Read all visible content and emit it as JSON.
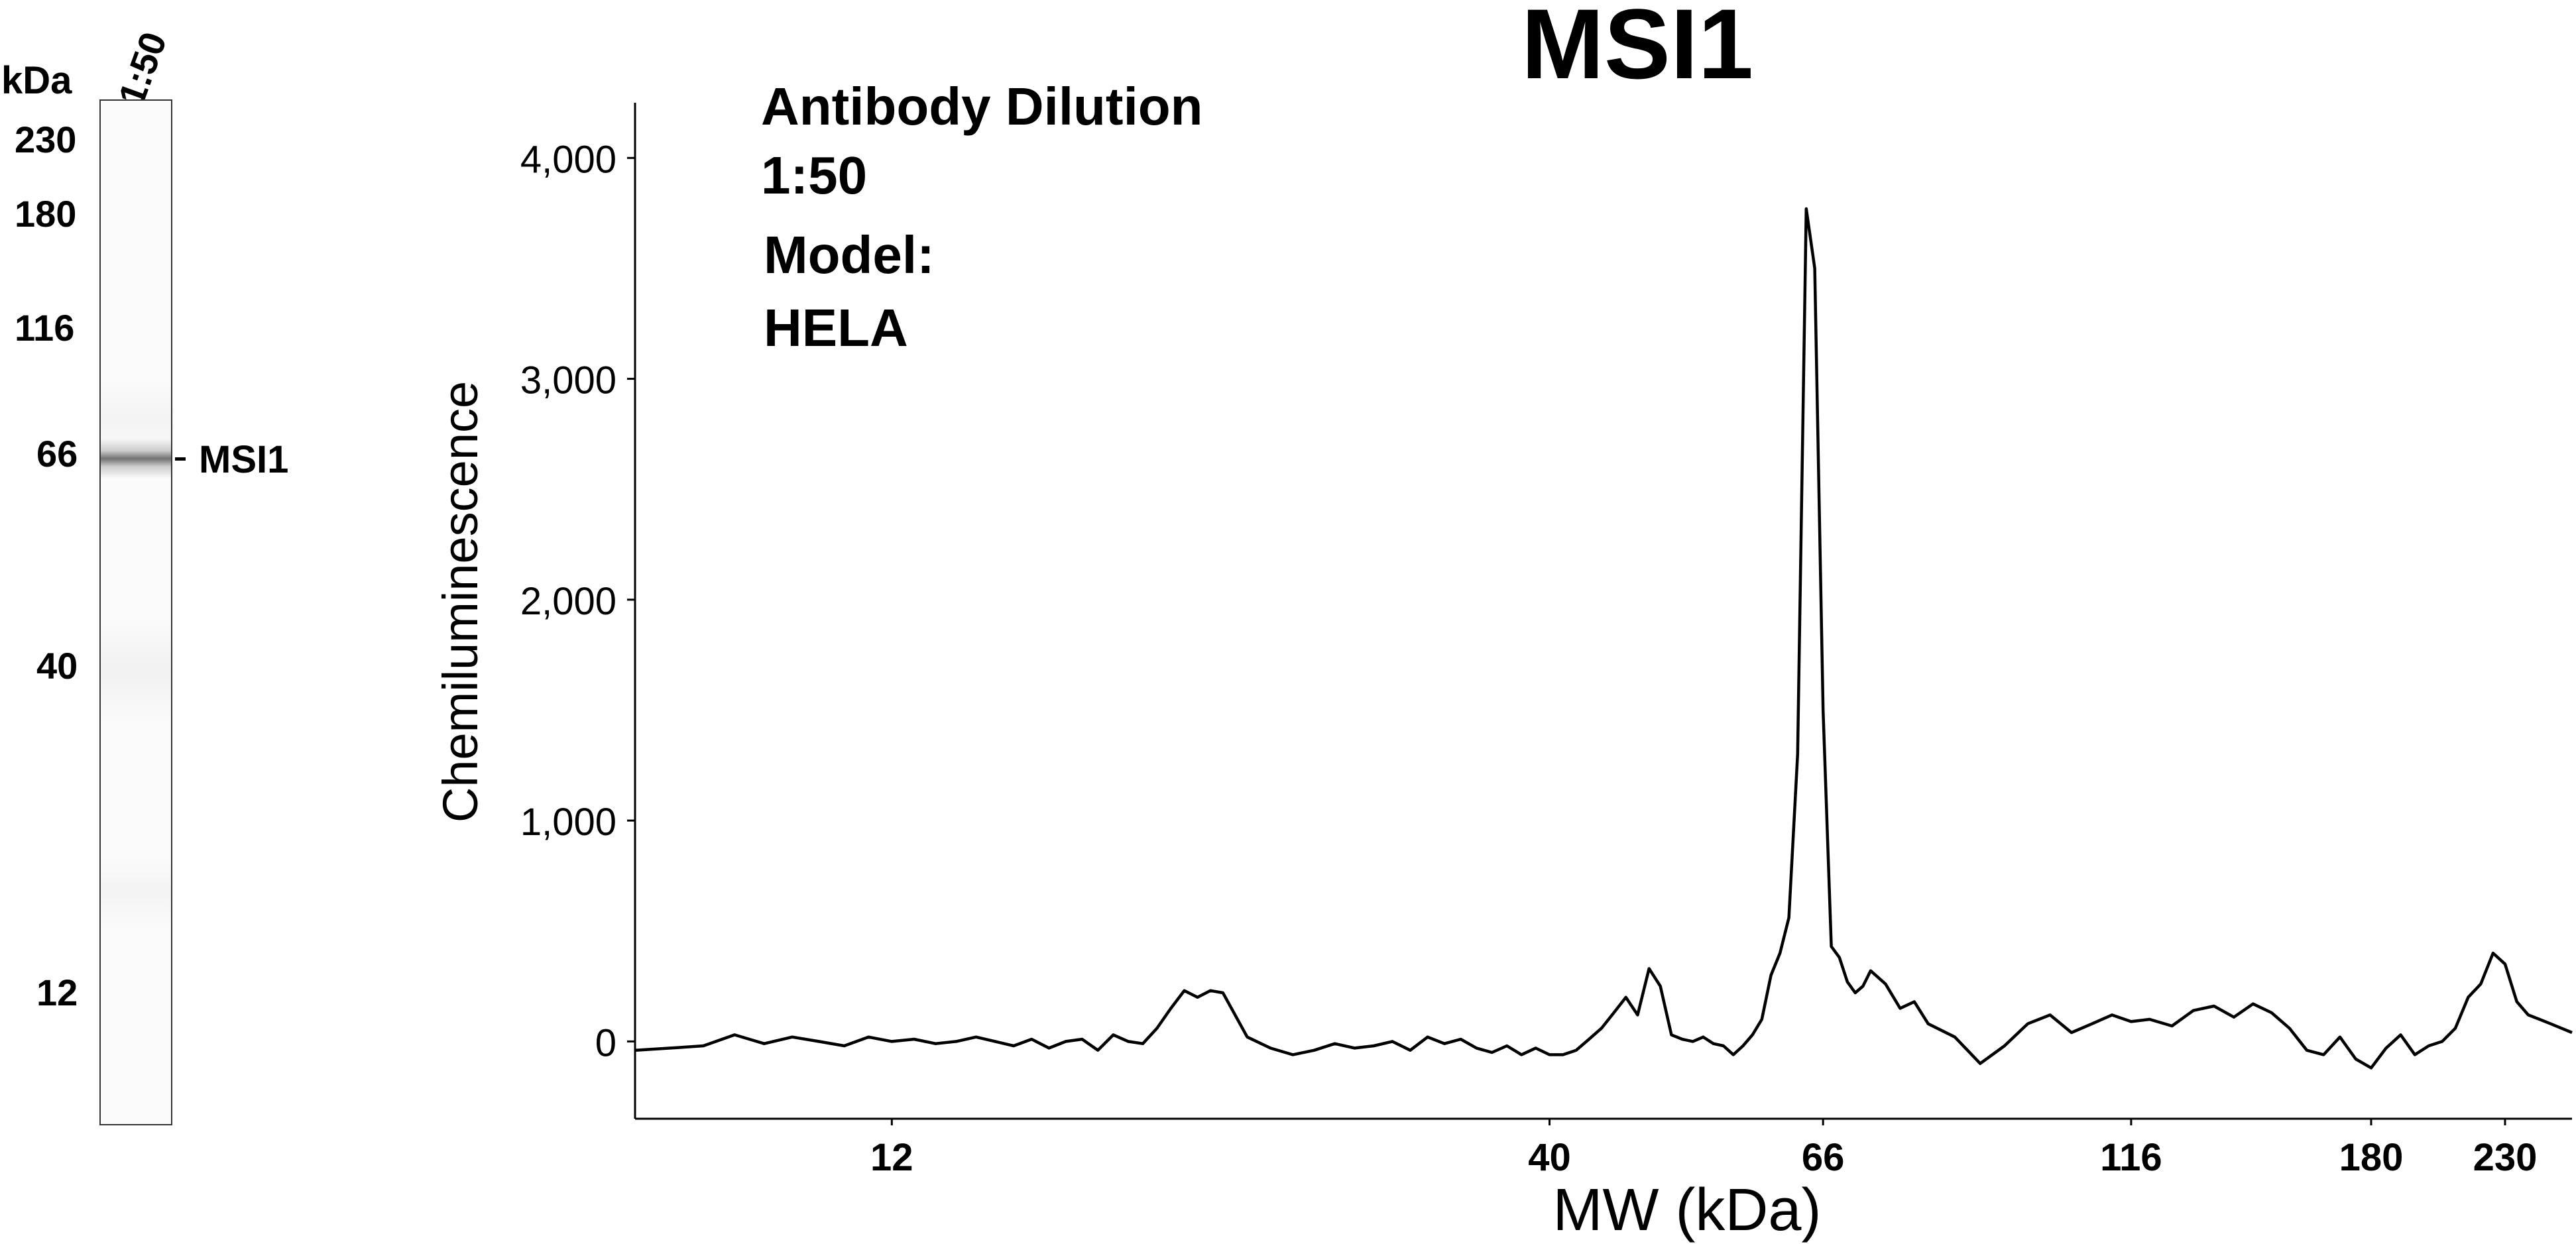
{
  "lane_panel": {
    "unit_label": "kDa",
    "lane_label": "1:50",
    "markers": [
      "230",
      "180",
      "116",
      "66",
      "40",
      "12"
    ],
    "band_label": "MSI1"
  },
  "chart_data": {
    "type": "line",
    "title": "MSI1",
    "annotations": [
      "Antibody Dilution",
      "1:50",
      "Model:",
      "HELA"
    ],
    "xlabel": "MW (kDa)",
    "ylabel": "Chemiluminescence",
    "x_tick_labels": [
      "12",
      "40",
      "66",
      "116",
      "180",
      "230"
    ],
    "y_tick_labels": [
      "0",
      "1,000",
      "2,000",
      "3,000",
      "4,000"
    ],
    "y_ticks": [
      0,
      1000,
      2000,
      3000,
      4000
    ],
    "ylim": [
      -350,
      4250
    ],
    "grid": false,
    "x_scale": "log",
    "xlim": [
      7.5,
      260
    ],
    "x_ticks": [
      12,
      40,
      66,
      116,
      180,
      230
    ],
    "series": [
      {
        "values_x": [
          7.5,
          8.0,
          8.5,
          9.0,
          9.5,
          10.0,
          10.5,
          11.0,
          11.5,
          12.0,
          12.5,
          13.0,
          13.5,
          14.0,
          14.5,
          15.0,
          15.5,
          16.0,
          16.5,
          17.0,
          17.5,
          18.0,
          18.5,
          19.0,
          19.5,
          20.0,
          20.5,
          21.0,
          21.5,
          22.0,
          23.0,
          24.0,
          25.0,
          26.0,
          27.0,
          28.0,
          29.0,
          30.0,
          31.0,
          32.0,
          33.0,
          34.0,
          35.0,
          36.0,
          37.0,
          38.0,
          39.0,
          40.0,
          41.0,
          42.0,
          43.0,
          44.0,
          45.0,
          46.0,
          47.0,
          48.0,
          49.0,
          50.0,
          51.0,
          52.0,
          53.0,
          54.0,
          55.0,
          56.0,
          57.0,
          58.0,
          59.0,
          60.0,
          61.0,
          62.0,
          63.0,
          64.0,
          65.0,
          66.0,
          67.0,
          68.0,
          69.0,
          70.0,
          71.0,
          72.0,
          74.0,
          76.0,
          78.0,
          80.0,
          84.0,
          88.0,
          92.0,
          96.0,
          100.0,
          104.0,
          108.0,
          112.0,
          116.0,
          120.0,
          125.0,
          130.0,
          135.0,
          140.0,
          145.0,
          150.0,
          155.0,
          160.0,
          165.0,
          170.0,
          175.0,
          180.0,
          185.0,
          190.0,
          195.0,
          200.0,
          205.0,
          210.0,
          215.0,
          220.0,
          225.0,
          230.0,
          235.0,
          240.0,
          245.0,
          250.0,
          255.0,
          260.0
        ],
        "values_y": [
          -40,
          -30,
          -20,
          30,
          -10,
          20,
          0,
          -20,
          20,
          0,
          10,
          -10,
          0,
          20,
          0,
          -20,
          10,
          -30,
          0,
          10,
          -40,
          30,
          0,
          -10,
          60,
          150,
          230,
          200,
          230,
          220,
          20,
          -30,
          -60,
          -40,
          -10,
          -30,
          -20,
          0,
          -40,
          20,
          -10,
          10,
          -30,
          -50,
          -20,
          -60,
          -30,
          -60,
          -60,
          -40,
          10,
          60,
          130,
          200,
          120,
          330,
          250,
          30,
          10,
          0,
          20,
          -10,
          -20,
          -60,
          -20,
          30,
          100,
          300,
          400,
          560,
          1300,
          3770,
          3500,
          1500,
          430,
          380,
          270,
          220,
          250,
          320,
          260,
          150,
          180,
          80,
          20,
          -100,
          -20,
          80,
          120,
          40,
          80,
          120,
          90,
          100,
          70,
          140,
          160,
          110,
          170,
          130,
          60,
          -40,
          -60,
          20,
          -80,
          -120,
          -30,
          30,
          -60,
          -20,
          0,
          60,
          200,
          260,
          400,
          350,
          180,
          120,
          100,
          80,
          60,
          40
        ]
      }
    ]
  }
}
